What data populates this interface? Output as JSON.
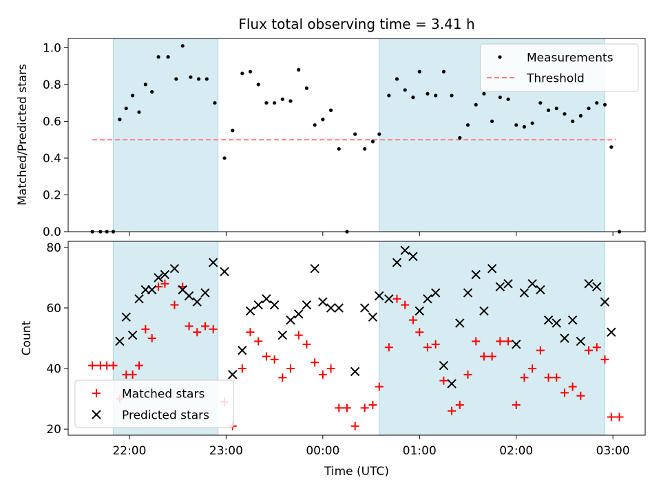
{
  "figure": {
    "title": "Flux total observing time = 3.41 h",
    "xlabel": "Time (UTC)"
  },
  "colors": {
    "band": "#add8e6",
    "measurements": "#000000",
    "threshold": "#ff7f7f",
    "matched": "#ff0000",
    "predicted": "#000000"
  },
  "chart_data": [
    {
      "type": "scatter",
      "ylabel": "Matched/Predicted stars",
      "xlim": [
        "21:22",
        "03:20"
      ],
      "ylim": [
        0,
        1.05
      ],
      "yticks": [
        "0.0",
        "0.2",
        "0.4",
        "0.6",
        "0.8",
        "1.0"
      ],
      "xtick_labels_shown": false,
      "legend": {
        "position": "top-right",
        "entries": [
          "Measurements",
          "Threshold"
        ]
      },
      "threshold": {
        "name": "Threshold",
        "y": 0.5,
        "x_range": [
          "21:37",
          "03:02"
        ]
      },
      "shaded_intervals": [
        [
          "21:50",
          "22:55"
        ],
        [
          "00:35",
          "02:55"
        ]
      ],
      "series": [
        {
          "name": "Measurements",
          "marker": "dot",
          "points": [
            [
              "21:37",
              0.0
            ],
            [
              "21:42",
              0.0
            ],
            [
              "21:46",
              0.0
            ],
            [
              "21:50",
              0.0
            ],
            [
              "21:54",
              0.61
            ],
            [
              "21:58",
              0.67
            ],
            [
              "22:02",
              0.74
            ],
            [
              "22:06",
              0.65
            ],
            [
              "22:10",
              0.8
            ],
            [
              "22:14",
              0.76
            ],
            [
              "22:18",
              0.95
            ],
            [
              "22:24",
              0.95
            ],
            [
              "22:29",
              0.83
            ],
            [
              "22:33",
              1.01
            ],
            [
              "22:38",
              0.84
            ],
            [
              "22:43",
              0.83
            ],
            [
              "22:48",
              0.83
            ],
            [
              "22:53",
              0.7
            ],
            [
              "22:59",
              0.4
            ],
            [
              "23:04",
              0.55
            ],
            [
              "23:10",
              0.86
            ],
            [
              "23:15",
              0.87
            ],
            [
              "23:20",
              0.8
            ],
            [
              "23:25",
              0.7
            ],
            [
              "23:30",
              0.7
            ],
            [
              "23:35",
              0.72
            ],
            [
              "23:40",
              0.71
            ],
            [
              "23:45",
              0.88
            ],
            [
              "23:50",
              0.78
            ],
            [
              "23:55",
              0.58
            ],
            [
              "00:00",
              0.61
            ],
            [
              "00:05",
              0.66
            ],
            [
              "00:10",
              0.45
            ],
            [
              "00:15",
              0.0
            ],
            [
              "00:20",
              0.53
            ],
            [
              "00:26",
              0.45
            ],
            [
              "00:31",
              0.49
            ],
            [
              "00:35",
              0.53
            ],
            [
              "00:41",
              0.74
            ],
            [
              "00:46",
              0.83
            ],
            [
              "00:51",
              0.77
            ],
            [
              "00:56",
              0.73
            ],
            [
              "01:00",
              0.87
            ],
            [
              "01:05",
              0.75
            ],
            [
              "01:10",
              0.74
            ],
            [
              "01:15",
              0.87
            ],
            [
              "01:20",
              0.74
            ],
            [
              "01:25",
              0.51
            ],
            [
              "01:30",
              0.58
            ],
            [
              "01:35",
              0.69
            ],
            [
              "01:40",
              0.75
            ],
            [
              "01:45",
              0.6
            ],
            [
              "01:50",
              0.73
            ],
            [
              "01:55",
              0.72
            ],
            [
              "02:00",
              0.58
            ],
            [
              "02:05",
              0.57
            ],
            [
              "02:10",
              0.59
            ],
            [
              "02:15",
              0.7
            ],
            [
              "02:20",
              0.66
            ],
            [
              "02:25",
              0.67
            ],
            [
              "02:30",
              0.64
            ],
            [
              "02:35",
              0.6
            ],
            [
              "02:40",
              0.63
            ],
            [
              "02:45",
              0.67
            ],
            [
              "02:50",
              0.7
            ],
            [
              "02:55",
              0.69
            ],
            [
              "02:59",
              0.46
            ],
            [
              "03:04",
              0.0
            ]
          ]
        }
      ]
    },
    {
      "type": "scatter",
      "ylabel": "Count",
      "xlim": [
        "21:22",
        "03:20"
      ],
      "ylim": [
        18,
        82
      ],
      "yticks": [
        "20",
        "40",
        "60",
        "80"
      ],
      "xticks": [
        "22:00",
        "23:00",
        "00:00",
        "01:00",
        "02:00",
        "03:00"
      ],
      "legend": {
        "position": "bottom-left",
        "entries": [
          "Matched stars",
          "Predicted stars"
        ]
      },
      "shaded_intervals": [
        [
          "21:50",
          "22:55"
        ],
        [
          "00:35",
          "02:55"
        ]
      ],
      "series": [
        {
          "name": "Matched stars",
          "marker": "plus",
          "points": [
            [
              "21:37",
              41
            ],
            [
              "21:42",
              41
            ],
            [
              "21:46",
              41
            ],
            [
              "21:50",
              41
            ],
            [
              "21:54",
              30
            ],
            [
              "21:58",
              38
            ],
            [
              "22:02",
              38
            ],
            [
              "22:06",
              41
            ],
            [
              "22:10",
              53
            ],
            [
              "22:14",
              50
            ],
            [
              "22:18",
              67
            ],
            [
              "22:22",
              68
            ],
            [
              "22:28",
              61
            ],
            [
              "22:33",
              67
            ],
            [
              "22:37",
              54
            ],
            [
              "22:42",
              52
            ],
            [
              "22:47",
              54
            ],
            [
              "22:52",
              53
            ],
            [
              "22:59",
              29
            ],
            [
              "23:04",
              21
            ],
            [
              "23:10",
              40
            ],
            [
              "23:15",
              52
            ],
            [
              "23:20",
              49
            ],
            [
              "23:25",
              44
            ],
            [
              "23:30",
              43
            ],
            [
              "23:35",
              37
            ],
            [
              "23:40",
              40
            ],
            [
              "23:45",
              51
            ],
            [
              "23:50",
              48
            ],
            [
              "23:55",
              42
            ],
            [
              "00:00",
              38
            ],
            [
              "00:05",
              40
            ],
            [
              "00:10",
              27
            ],
            [
              "00:15",
              27
            ],
            [
              "00:20",
              21
            ],
            [
              "00:26",
              27
            ],
            [
              "00:31",
              28
            ],
            [
              "00:35",
              34
            ],
            [
              "00:41",
              47
            ],
            [
              "00:46",
              63
            ],
            [
              "00:51",
              61
            ],
            [
              "00:56",
              56
            ],
            [
              "01:00",
              52
            ],
            [
              "01:05",
              47
            ],
            [
              "01:10",
              48
            ],
            [
              "01:15",
              36
            ],
            [
              "01:20",
              26
            ],
            [
              "01:25",
              28
            ],
            [
              "01:30",
              38
            ],
            [
              "01:35",
              49
            ],
            [
              "01:40",
              44
            ],
            [
              "01:45",
              44
            ],
            [
              "01:50",
              49
            ],
            [
              "01:55",
              49
            ],
            [
              "02:00",
              28
            ],
            [
              "02:05",
              37
            ],
            [
              "02:10",
              40
            ],
            [
              "02:15",
              46
            ],
            [
              "02:20",
              37
            ],
            [
              "02:25",
              37
            ],
            [
              "02:30",
              32
            ],
            [
              "02:35",
              34
            ],
            [
              "02:40",
              31
            ],
            [
              "02:45",
              46
            ],
            [
              "02:50",
              47
            ],
            [
              "02:55",
              43
            ],
            [
              "02:59",
              24
            ],
            [
              "03:04",
              24
            ]
          ]
        },
        {
          "name": "Predicted stars",
          "marker": "x",
          "points": [
            [
              "21:54",
              49
            ],
            [
              "21:58",
              57
            ],
            [
              "22:02",
              51
            ],
            [
              "22:06",
              63
            ],
            [
              "22:10",
              66
            ],
            [
              "22:14",
              66
            ],
            [
              "22:18",
              70
            ],
            [
              "22:22",
              71
            ],
            [
              "22:28",
              73
            ],
            [
              "22:33",
              66
            ],
            [
              "22:37",
              64
            ],
            [
              "22:42",
              62
            ],
            [
              "22:47",
              65
            ],
            [
              "22:52",
              75
            ],
            [
              "22:59",
              72
            ],
            [
              "23:04",
              38
            ],
            [
              "23:10",
              46
            ],
            [
              "23:15",
              59
            ],
            [
              "23:20",
              61
            ],
            [
              "23:25",
              63
            ],
            [
              "23:30",
              61
            ],
            [
              "23:35",
              51
            ],
            [
              "23:40",
              56
            ],
            [
              "23:45",
              58
            ],
            [
              "23:50",
              61
            ],
            [
              "23:55",
              73
            ],
            [
              "00:00",
              62
            ],
            [
              "00:05",
              60
            ],
            [
              "00:10",
              60
            ],
            [
              "00:20",
              39
            ],
            [
              "00:26",
              60
            ],
            [
              "00:31",
              57
            ],
            [
              "00:35",
              64
            ],
            [
              "00:41",
              63
            ],
            [
              "00:46",
              75
            ],
            [
              "00:51",
              79
            ],
            [
              "00:56",
              77
            ],
            [
              "01:00",
              59
            ],
            [
              "01:05",
              63
            ],
            [
              "01:10",
              65
            ],
            [
              "01:15",
              41
            ],
            [
              "01:20",
              35
            ],
            [
              "01:25",
              55
            ],
            [
              "01:30",
              65
            ],
            [
              "01:35",
              71
            ],
            [
              "01:40",
              59
            ],
            [
              "01:45",
              73
            ],
            [
              "01:50",
              67
            ],
            [
              "01:55",
              68
            ],
            [
              "02:00",
              48
            ],
            [
              "02:05",
              65
            ],
            [
              "02:10",
              68
            ],
            [
              "02:15",
              66
            ],
            [
              "02:20",
              56
            ],
            [
              "02:25",
              55
            ],
            [
              "02:30",
              50
            ],
            [
              "02:35",
              56
            ],
            [
              "02:40",
              49
            ],
            [
              "02:45",
              68
            ],
            [
              "02:50",
              67
            ],
            [
              "02:55",
              62
            ],
            [
              "02:59",
              52
            ]
          ]
        }
      ]
    }
  ]
}
